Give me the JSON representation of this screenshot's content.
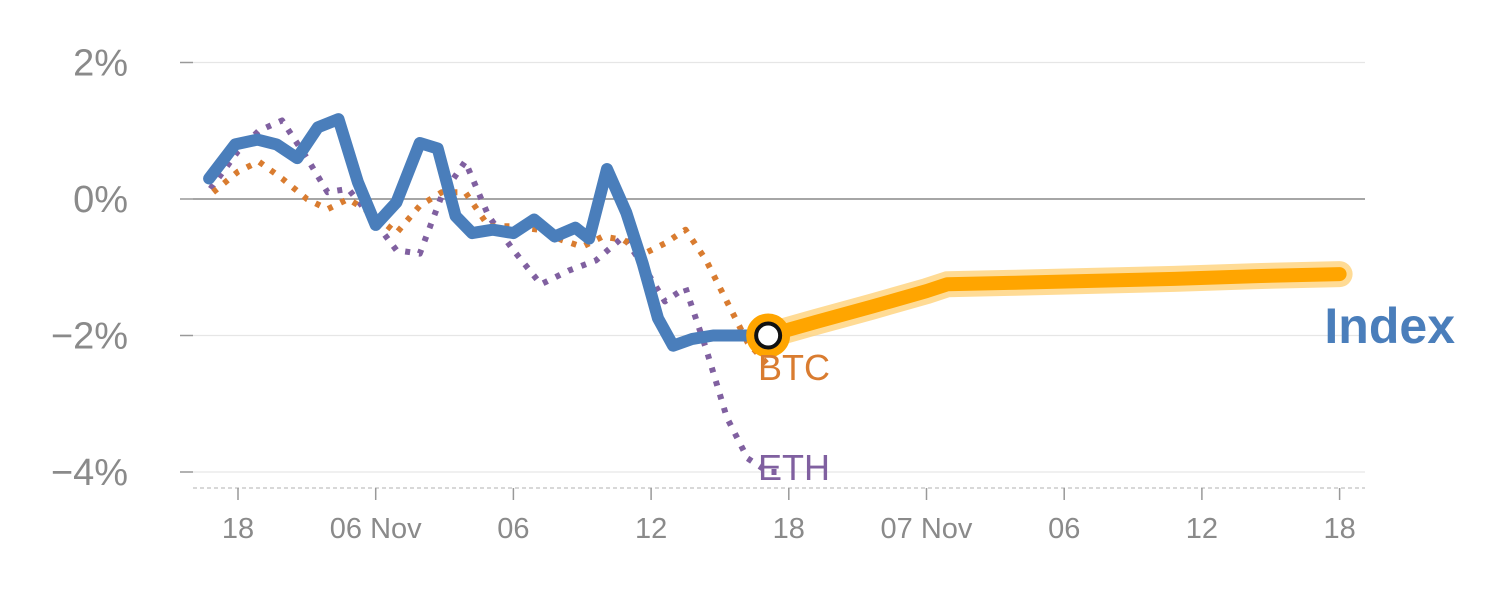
{
  "chart_data": {
    "type": "line",
    "title": "",
    "xlabel": "",
    "ylabel": "",
    "y_unit": "%",
    "ylim": [
      -4.2,
      2.1
    ],
    "xlim": [
      -0.4,
      8.2
    ],
    "y_ticks": [
      {
        "value": 2,
        "label": "2%"
      },
      {
        "value": 0,
        "label": "0%"
      },
      {
        "value": -2,
        "label": "−2%"
      },
      {
        "value": -4,
        "label": "−4%"
      }
    ],
    "x_ticks": [
      {
        "value": 0,
        "label": "18"
      },
      {
        "value": 1,
        "label": "06 Nov"
      },
      {
        "value": 2,
        "label": "06"
      },
      {
        "value": 3,
        "label": "12"
      },
      {
        "value": 4,
        "label": "18"
      },
      {
        "value": 5,
        "label": "07 Nov"
      },
      {
        "value": 6,
        "label": "06"
      },
      {
        "value": 7,
        "label": "12"
      },
      {
        "value": 8,
        "label": "18"
      }
    ],
    "grid": true,
    "zero_line": true,
    "colors": {
      "index": "#4a7ebb",
      "btc": "#d97c30",
      "eth": "#8060a0",
      "forecast": "#ffa500",
      "forecast_band": "#ffd27a",
      "grid": "#e6e6e6",
      "zero": "#888888",
      "tick_text": "#8a8a8a"
    },
    "series": [
      {
        "key": "index",
        "name": "Index",
        "style": "solid",
        "x": [
          -0.21,
          -0.02,
          0.14,
          0.28,
          0.43,
          0.58,
          0.73,
          0.87,
          1.0,
          1.15,
          1.32,
          1.45,
          1.58,
          1.7,
          1.85,
          2.0,
          2.15,
          2.3,
          2.45,
          2.55,
          2.68,
          2.82,
          2.94,
          3.05,
          3.16,
          3.3,
          3.45,
          3.6,
          3.7,
          3.82
        ],
        "values": [
          0.3,
          0.8,
          0.87,
          0.8,
          0.6,
          1.05,
          1.17,
          0.25,
          -0.38,
          -0.05,
          0.82,
          0.74,
          -0.25,
          -0.5,
          -0.45,
          -0.5,
          -0.3,
          -0.55,
          -0.42,
          -0.58,
          0.44,
          -0.2,
          -0.95,
          -1.75,
          -2.15,
          -2.05,
          -2.0,
          -2.0,
          -2.0,
          -2.0
        ]
      },
      {
        "key": "btc",
        "name": "BTC",
        "style": "dotted",
        "x": [
          -0.18,
          0.0,
          0.15,
          0.32,
          0.5,
          0.65,
          0.8,
          1.0,
          1.15,
          1.32,
          1.48,
          1.65,
          1.82,
          2.0,
          2.18,
          2.35,
          2.5,
          2.65,
          2.8,
          2.95,
          3.1,
          3.25,
          3.4,
          3.55,
          3.7,
          3.88
        ],
        "values": [
          0.1,
          0.4,
          0.55,
          0.3,
          0.0,
          -0.15,
          0.0,
          -0.25,
          -0.5,
          -0.1,
          0.1,
          0.1,
          -0.4,
          -0.4,
          -0.45,
          -0.6,
          -0.7,
          -0.55,
          -0.6,
          -0.8,
          -0.65,
          -0.45,
          -0.9,
          -1.5,
          -2.1,
          -2.5
        ]
      },
      {
        "key": "eth",
        "name": "ETH",
        "style": "dotted",
        "x": [
          -0.2,
          0.0,
          0.15,
          0.32,
          0.5,
          0.65,
          0.8,
          1.0,
          1.15,
          1.32,
          1.48,
          1.65,
          1.82,
          2.0,
          2.2,
          2.4,
          2.6,
          2.8,
          2.95,
          3.1,
          3.25,
          3.4,
          3.55,
          3.7,
          3.85,
          3.95
        ],
        "values": [
          0.15,
          0.7,
          1.0,
          1.15,
          0.6,
          0.1,
          0.15,
          -0.35,
          -0.75,
          -0.8,
          0.05,
          0.55,
          -0.25,
          -0.75,
          -1.25,
          -1.05,
          -0.9,
          -0.55,
          -1.0,
          -1.5,
          -1.3,
          -2.2,
          -3.2,
          -3.8,
          -4.0,
          -4.0
        ]
      },
      {
        "key": "forecast",
        "name": "",
        "style": "band",
        "x": [
          3.85,
          4.2,
          4.6,
          5.0,
          5.15,
          5.6,
          6.2,
          6.8,
          7.4,
          8.0
        ],
        "values": [
          -2.0,
          -1.8,
          -1.58,
          -1.35,
          -1.25,
          -1.23,
          -1.2,
          -1.17,
          -1.13,
          -1.1
        ]
      }
    ],
    "marker": {
      "x": 3.85,
      "y": -2.0
    },
    "labels": [
      {
        "series": "btc",
        "text": "BTC"
      },
      {
        "series": "eth",
        "text": "ETH"
      },
      {
        "series": "index",
        "text": "Index"
      }
    ]
  }
}
